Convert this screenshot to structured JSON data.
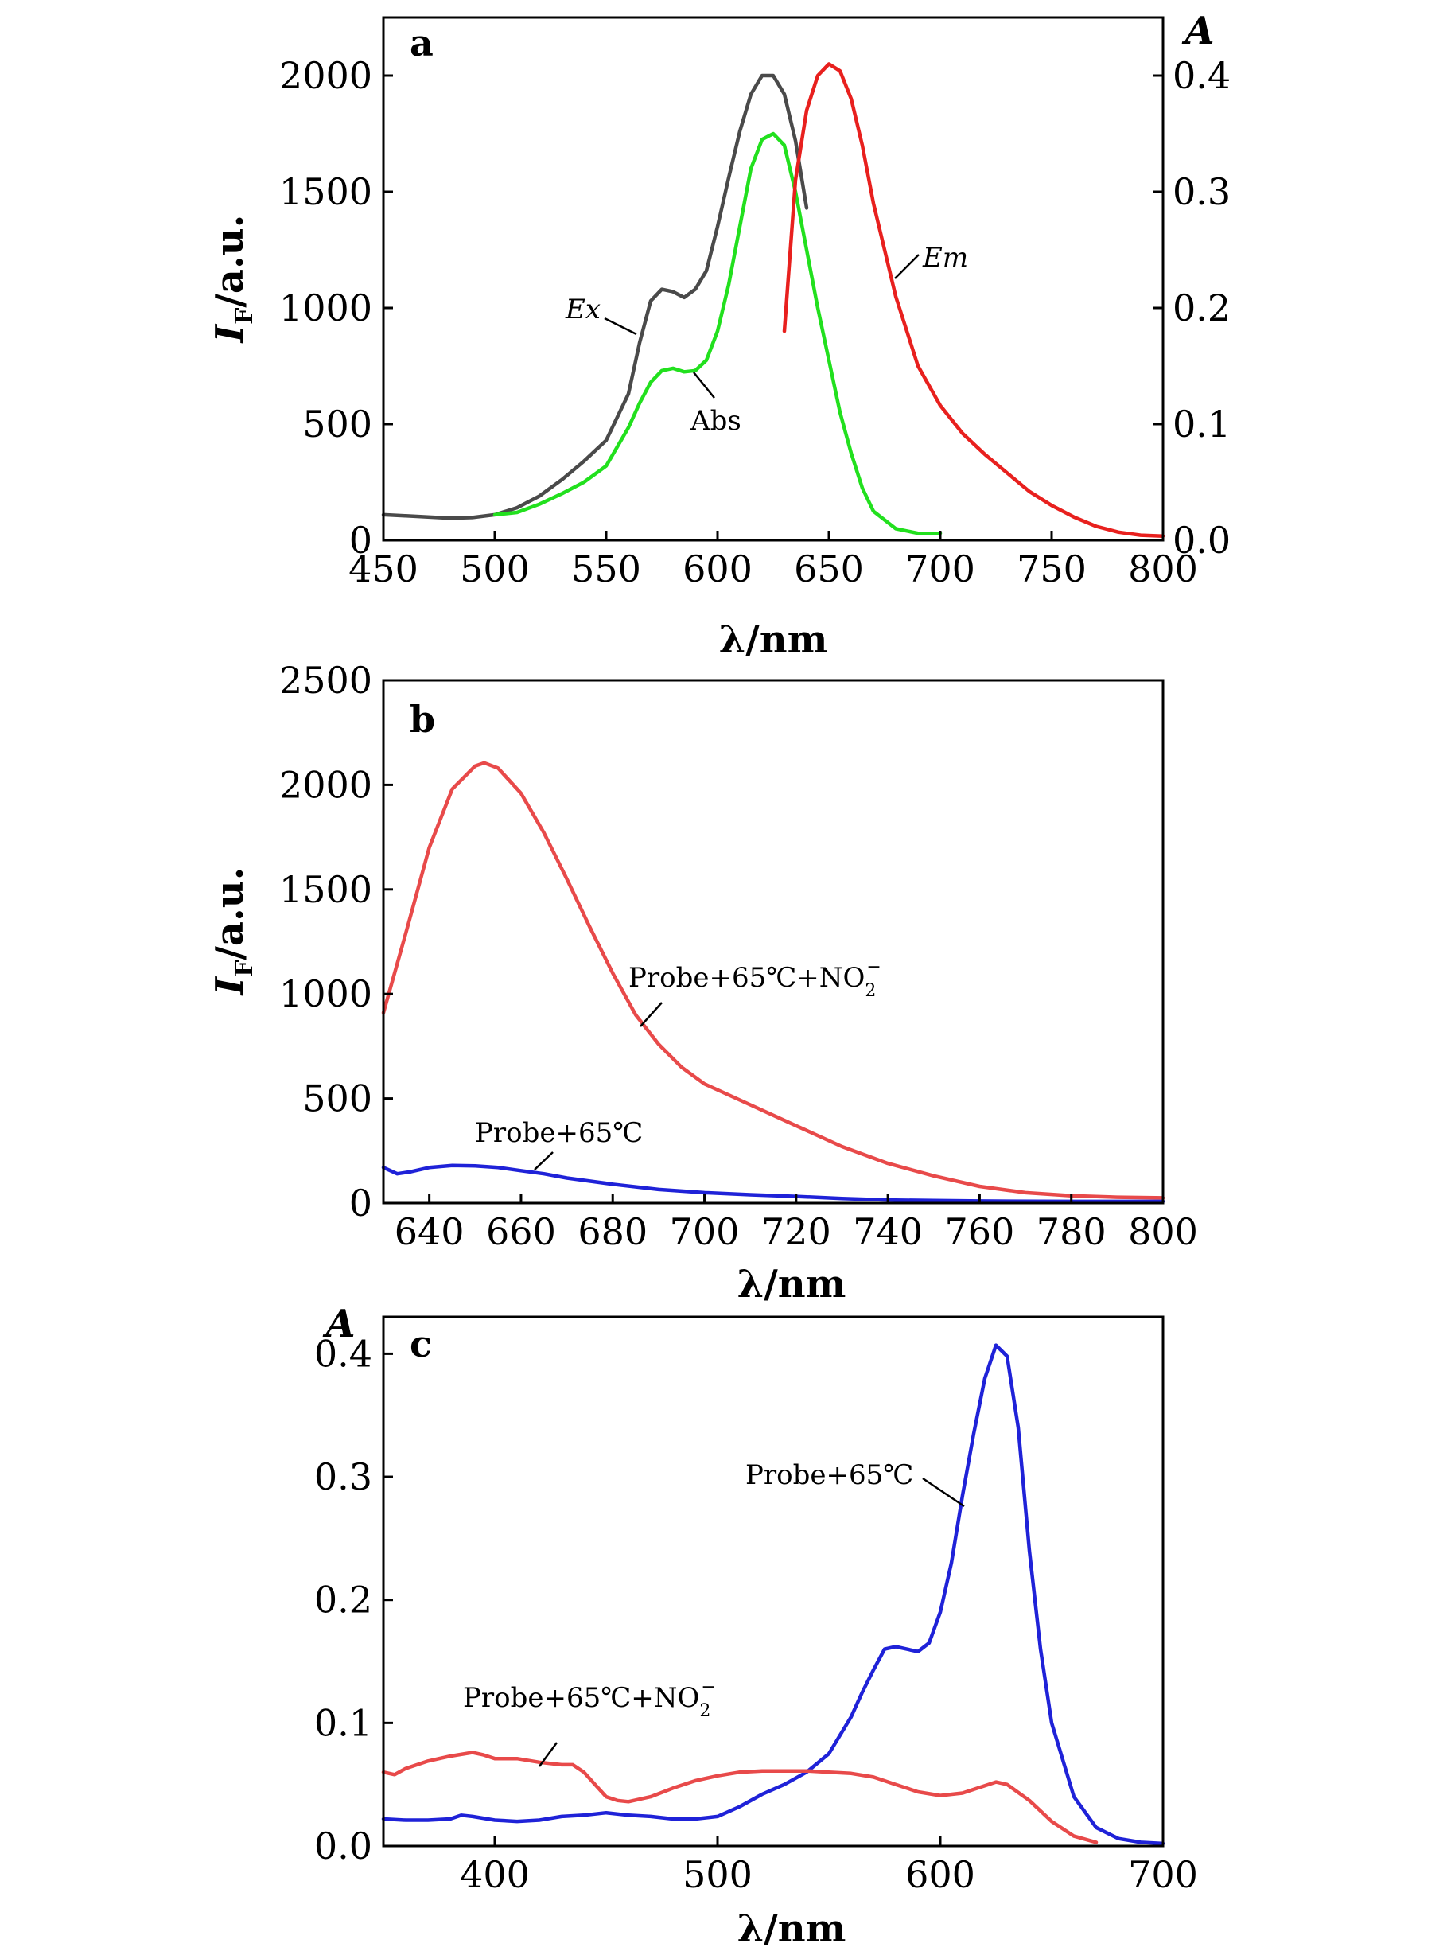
{
  "chart_data": [
    {
      "id": "a",
      "type": "line",
      "panel_label": "a",
      "xlabel": "λ/nm",
      "ylabel": "I_F/a.u.",
      "ylabel_main": "I",
      "ylabel_sub": "F",
      "ylabel_rest": "/a.u.",
      "y2label": "A",
      "xlim": [
        450,
        800
      ],
      "ylim": [
        0,
        2250
      ],
      "y2lim": [
        0,
        0.45
      ],
      "xticks": [
        450,
        500,
        550,
        600,
        650,
        700,
        750,
        800
      ],
      "yticks": [
        0,
        500,
        1000,
        1500,
        2000
      ],
      "y2ticks": [
        0.0,
        0.1,
        0.2,
        0.3,
        0.4
      ],
      "y2tick_labels": [
        "0.0",
        "0.1",
        "0.2",
        "0.3",
        "0.4"
      ],
      "series": [
        {
          "name": "Ex",
          "axis": "left",
          "color": "#4a4a4a",
          "x": [
            450,
            460,
            470,
            480,
            490,
            500,
            510,
            520,
            530,
            540,
            550,
            560,
            565,
            570,
            575,
            580,
            585,
            590,
            595,
            600,
            605,
            610,
            615,
            620,
            625,
            630,
            635,
            640
          ],
          "y": [
            110,
            105,
            100,
            95,
            98,
            110,
            140,
            190,
            260,
            340,
            430,
            630,
            850,
            1030,
            1080,
            1070,
            1045,
            1080,
            1160,
            1350,
            1560,
            1760,
            1920,
            2000,
            2000,
            1920,
            1720,
            1430
          ]
        },
        {
          "name": "Abs",
          "axis": "right",
          "color": "#22e01e",
          "x": [
            500,
            510,
            520,
            530,
            540,
            550,
            560,
            565,
            570,
            575,
            580,
            585,
            590,
            595,
            600,
            605,
            610,
            615,
            620,
            625,
            630,
            635,
            640,
            645,
            650,
            655,
            660,
            665,
            670,
            680,
            690,
            700
          ],
          "y": [
            0.022,
            0.024,
            0.031,
            0.04,
            0.05,
            0.064,
            0.097,
            0.118,
            0.136,
            0.146,
            0.148,
            0.145,
            0.146,
            0.155,
            0.18,
            0.22,
            0.27,
            0.32,
            0.345,
            0.35,
            0.34,
            0.3,
            0.25,
            0.2,
            0.155,
            0.11,
            0.075,
            0.045,
            0.025,
            0.01,
            0.006,
            0.006
          ]
        },
        {
          "name": "Em",
          "axis": "left",
          "color": "#e8201e",
          "x": [
            630,
            635,
            640,
            645,
            650,
            655,
            660,
            665,
            670,
            675,
            680,
            690,
            700,
            710,
            720,
            730,
            740,
            750,
            760,
            770,
            780,
            790,
            800
          ],
          "y": [
            900,
            1550,
            1850,
            2000,
            2050,
            2020,
            1900,
            1700,
            1450,
            1250,
            1050,
            750,
            580,
            460,
            370,
            290,
            210,
            150,
            100,
            60,
            35,
            22,
            18
          ]
        }
      ],
      "annotations": [
        {
          "text": "Ex",
          "italic": true
        },
        {
          "text": "Abs",
          "italic": false
        },
        {
          "text": "Em",
          "italic": true
        }
      ]
    },
    {
      "id": "b",
      "type": "line",
      "panel_label": "b",
      "xlabel": "λ/nm",
      "ylabel": "I_F/a.u.",
      "ylabel_main": "I",
      "ylabel_sub": "F",
      "ylabel_rest": "/a.u.",
      "xlim": [
        630,
        800
      ],
      "ylim": [
        0,
        2500
      ],
      "xticks": [
        640,
        660,
        680,
        700,
        720,
        740,
        760,
        780,
        800
      ],
      "yticks": [
        0,
        500,
        1000,
        1500,
        2000,
        2500
      ],
      "series": [
        {
          "name": "Probe+65℃+NO2−",
          "color": "#e84a4a",
          "x": [
            630,
            635,
            640,
            645,
            650,
            652,
            655,
            660,
            665,
            670,
            675,
            680,
            685,
            690,
            695,
            700,
            710,
            720,
            730,
            740,
            750,
            760,
            770,
            780,
            790,
            800
          ],
          "y": [
            910,
            1300,
            1700,
            1980,
            2090,
            2105,
            2080,
            1960,
            1770,
            1550,
            1320,
            1100,
            900,
            760,
            650,
            570,
            470,
            370,
            270,
            190,
            130,
            80,
            50,
            35,
            28,
            25
          ]
        },
        {
          "name": "Probe+65℃",
          "color": "#1f22d8",
          "x": [
            630,
            633,
            636,
            640,
            645,
            650,
            655,
            660,
            665,
            670,
            680,
            690,
            700,
            710,
            720,
            730,
            740,
            750,
            760,
            780,
            800
          ],
          "y": [
            170,
            140,
            150,
            170,
            180,
            178,
            170,
            155,
            140,
            120,
            90,
            65,
            50,
            40,
            32,
            22,
            15,
            12,
            10,
            8,
            8
          ]
        }
      ],
      "annotations": [
        {
          "text_main": "Probe+65℃+NO",
          "sub": "2",
          "sup": "−"
        },
        {
          "text_main": "Probe+65℃"
        }
      ]
    },
    {
      "id": "c",
      "type": "line",
      "panel_label": "c",
      "xlabel": "λ/nm",
      "ylabel": "A",
      "xlim": [
        350,
        700
      ],
      "ylim": [
        0,
        0.43
      ],
      "xticks": [
        400,
        500,
        600,
        700
      ],
      "yticks": [
        0.0,
        0.1,
        0.2,
        0.3,
        0.4
      ],
      "ytick_labels": [
        "0.0",
        "0.1",
        "0.2",
        "0.3",
        "0.4"
      ],
      "series": [
        {
          "name": "Probe+65℃",
          "color": "#1f22d8",
          "x": [
            350,
            360,
            370,
            380,
            385,
            390,
            400,
            410,
            420,
            430,
            440,
            450,
            460,
            470,
            480,
            490,
            500,
            510,
            520,
            530,
            540,
            550,
            560,
            565,
            570,
            575,
            580,
            585,
            590,
            595,
            600,
            605,
            610,
            615,
            620,
            625,
            630,
            635,
            640,
            645,
            650,
            660,
            670,
            680,
            690,
            700
          ],
          "y": [
            0.022,
            0.021,
            0.021,
            0.022,
            0.025,
            0.024,
            0.021,
            0.02,
            0.021,
            0.024,
            0.025,
            0.027,
            0.025,
            0.024,
            0.022,
            0.022,
            0.024,
            0.032,
            0.042,
            0.05,
            0.06,
            0.075,
            0.105,
            0.125,
            0.143,
            0.16,
            0.162,
            0.16,
            0.158,
            0.165,
            0.19,
            0.23,
            0.285,
            0.335,
            0.38,
            0.407,
            0.398,
            0.34,
            0.24,
            0.16,
            0.1,
            0.04,
            0.015,
            0.006,
            0.003,
            0.002
          ]
        },
        {
          "name": "Probe+65℃+NO2−",
          "color": "#e84a4a",
          "x": [
            350,
            355,
            360,
            370,
            380,
            390,
            395,
            400,
            410,
            420,
            430,
            435,
            440,
            445,
            450,
            455,
            460,
            470,
            480,
            490,
            500,
            510,
            520,
            530,
            540,
            550,
            560,
            570,
            580,
            590,
            600,
            610,
            620,
            625,
            630,
            640,
            650,
            660,
            670
          ],
          "y": [
            0.06,
            0.058,
            0.063,
            0.069,
            0.073,
            0.076,
            0.074,
            0.071,
            0.071,
            0.068,
            0.066,
            0.066,
            0.06,
            0.05,
            0.04,
            0.037,
            0.036,
            0.04,
            0.047,
            0.053,
            0.057,
            0.06,
            0.061,
            0.061,
            0.061,
            0.06,
            0.059,
            0.056,
            0.05,
            0.044,
            0.041,
            0.043,
            0.049,
            0.052,
            0.05,
            0.037,
            0.02,
            0.008,
            0.003
          ]
        }
      ],
      "annotations": [
        {
          "text_main": "Probe+65℃"
        },
        {
          "text_main": "Probe+65℃+NO",
          "sub": "2",
          "sup": "−"
        }
      ]
    }
  ]
}
